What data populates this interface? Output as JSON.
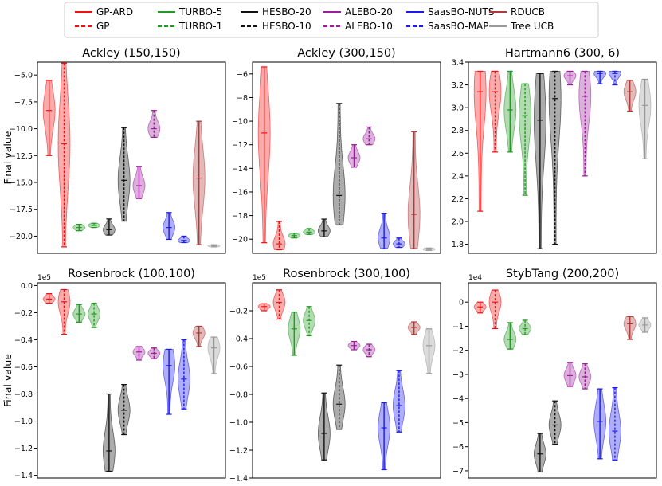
{
  "chart_data": {
    "type": "violin",
    "layout": "2x3 grid",
    "legend": {
      "placement": "top-center",
      "entries": [
        {
          "label": "GP-ARD",
          "color": "#ee1111",
          "dash": "solid"
        },
        {
          "label": "GP",
          "color": "#ee1111",
          "dash": "dashed"
        },
        {
          "label": "TURBO-5",
          "color": "#229922",
          "dash": "solid"
        },
        {
          "label": "TURBO-1",
          "color": "#229922",
          "dash": "dashed"
        },
        {
          "label": "HESBO-20",
          "color": "#111111",
          "dash": "solid"
        },
        {
          "label": "HESBO-10",
          "color": "#111111",
          "dash": "dashed"
        },
        {
          "label": "ALEBO-20",
          "color": "#9b1f9b",
          "dash": "solid"
        },
        {
          "label": "ALEBO-10",
          "color": "#9b1f9b",
          "dash": "dashed"
        },
        {
          "label": "SaasBO-NUTS",
          "color": "#1a1aee",
          "dash": "solid"
        },
        {
          "label": "SaasBO-MAP",
          "color": "#1a1aee",
          "dash": "dashed"
        },
        {
          "label": "RDUCB",
          "color": "#b03a3a",
          "dash": "solid"
        },
        {
          "label": "Tree UCB",
          "color": "#999999",
          "dash": "solid"
        }
      ]
    },
    "colors": {
      "gp": "#ee1111",
      "turbo": "#229922",
      "hesbo": "#111111",
      "alebo": "#9b1f9b",
      "saasbo": "#1a1aee",
      "rducb": "#b03a3a",
      "treeucb": "#999999"
    },
    "ylabel": "Final value",
    "panels": [
      {
        "title": "Ackley (150,150)",
        "ylabel": "Final value",
        "ylim": [
          -21.6,
          -3.8
        ],
        "yticks": [
          -5.0,
          -7.5,
          -10.0,
          -12.5,
          -15.0,
          -17.5,
          -20.0
        ],
        "tick_labels": [
          "−5.0",
          "−7.5",
          "−10.0",
          "−12.5",
          "−15.0",
          "−17.5",
          "−20.0"
        ],
        "exponent": "",
        "violins": [
          {
            "method": "GP-ARD",
            "min": -12.5,
            "max": -5.5,
            "median": -8.3
          },
          {
            "method": "GP",
            "min": -21.0,
            "max": -3.9,
            "median": -11.4
          },
          {
            "method": "TURBO-5",
            "min": -19.5,
            "max": -18.9,
            "median": -19.2
          },
          {
            "method": "TURBO-1",
            "min": -19.2,
            "max": -18.8,
            "median": -19.0
          },
          {
            "method": "HESBO-20",
            "min": -19.9,
            "max": -18.4,
            "median": -19.4
          },
          {
            "method": "HESBO-10",
            "min": -18.6,
            "max": -9.9,
            "median": -14.8
          },
          {
            "method": "ALEBO-20",
            "min": -16.5,
            "max": -13.5,
            "median": -15.3
          },
          {
            "method": "ALEBO-10",
            "min": -10.8,
            "max": -8.3,
            "median": -10.0
          },
          {
            "method": "SaasBO-NUTS",
            "min": -20.3,
            "max": -17.8,
            "median": -19.2
          },
          {
            "method": "SaasBO-MAP",
            "min": -20.6,
            "max": -20.0,
            "median": -20.4
          },
          {
            "method": "RDUCB",
            "min": -20.8,
            "max": -9.3,
            "median": -14.6
          },
          {
            "method": "Tree UCB",
            "min": -21.0,
            "max": -20.8,
            "median": -20.9
          }
        ]
      },
      {
        "title": "Ackley (300,150)",
        "ylabel": "",
        "ylim": [
          -21.2,
          -5.0
        ],
        "yticks": [
          -6,
          -8,
          -10,
          -12,
          -14,
          -16,
          -18,
          -20
        ],
        "tick_labels": [
          "−6",
          "−8",
          "−10",
          "−12",
          "−14",
          "−16",
          "−18",
          "−20"
        ],
        "exponent": "",
        "violins": [
          {
            "method": "GP-ARD",
            "min": -20.3,
            "max": -5.4,
            "median": -11.0
          },
          {
            "method": "GP",
            "min": -20.9,
            "max": -18.5,
            "median": -20.4
          },
          {
            "method": "TURBO-5",
            "min": -19.9,
            "max": -19.5,
            "median": -19.7
          },
          {
            "method": "TURBO-1",
            "min": -19.6,
            "max": -19.1,
            "median": -19.4
          },
          {
            "method": "HESBO-20",
            "min": -19.8,
            "max": -18.3,
            "median": -19.3
          },
          {
            "method": "HESBO-10",
            "min": -18.8,
            "max": -8.5,
            "median": -16.3
          },
          {
            "method": "ALEBO-20",
            "min": -13.9,
            "max": -12.0,
            "median": -13.1
          },
          {
            "method": "ALEBO-10",
            "min": -12.0,
            "max": -10.5,
            "median": -11.5
          },
          {
            "method": "SaasBO-NUTS",
            "min": -20.8,
            "max": -17.8,
            "median": -19.9
          },
          {
            "method": "SaasBO-MAP",
            "min": -20.7,
            "max": -19.9,
            "median": -20.4
          },
          {
            "method": "RDUCB",
            "min": -20.8,
            "max": -10.9,
            "median": -17.9
          },
          {
            "method": "Tree UCB",
            "min": -20.95,
            "max": -20.75,
            "median": -20.85
          }
        ]
      },
      {
        "title": "Hartmann6 (300, 6)",
        "ylabel": "",
        "ylim": [
          1.72,
          3.4
        ],
        "yticks": [
          1.8,
          2.0,
          2.2,
          2.4,
          2.6,
          2.8,
          3.0,
          3.2,
          3.4
        ],
        "tick_labels": [
          "1.8",
          "2.0",
          "2.2",
          "2.4",
          "2.6",
          "2.8",
          "3.0",
          "3.2",
          "3.4"
        ],
        "exponent": "",
        "violins": [
          {
            "method": "GP-ARD",
            "min": 2.09,
            "max": 3.32,
            "median": 3.14
          },
          {
            "method": "GP",
            "min": 2.61,
            "max": 3.32,
            "median": 3.14
          },
          {
            "method": "TURBO-5",
            "min": 2.61,
            "max": 3.32,
            "median": 2.98
          },
          {
            "method": "TURBO-1",
            "min": 2.23,
            "max": 3.21,
            "median": 2.93
          },
          {
            "method": "HESBO-20",
            "min": 1.76,
            "max": 3.3,
            "median": 2.89
          },
          {
            "method": "HESBO-10",
            "min": 1.8,
            "max": 3.32,
            "median": 3.08
          },
          {
            "method": "ALEBO-20",
            "min": 3.2,
            "max": 3.32,
            "median": 3.28
          },
          {
            "method": "ALEBO-10",
            "min": 2.4,
            "max": 3.32,
            "median": 3.1
          },
          {
            "method": "SaasBO-NUTS",
            "min": 3.21,
            "max": 3.32,
            "median": 3.3
          },
          {
            "method": "SaasBO-MAP",
            "min": 3.2,
            "max": 3.32,
            "median": 3.3
          },
          {
            "method": "RDUCB",
            "min": 2.97,
            "max": 3.24,
            "median": 3.14
          },
          {
            "method": "Tree UCB",
            "min": 2.55,
            "max": 3.25,
            "median": 3.02
          }
        ]
      },
      {
        "title": "Rosenbrock (100,100)",
        "ylabel": "Final value",
        "ylim": [
          -1.42,
          0.02
        ],
        "yticks": [
          0.0,
          -0.2,
          -0.4,
          -0.6,
          -0.8,
          -1.0,
          -1.2,
          -1.4
        ],
        "tick_labels": [
          "0.0",
          "−0.2",
          "−0.4",
          "−0.6",
          "−0.8",
          "−1.0",
          "−1.2",
          "−1.4"
        ],
        "exponent": "1e5",
        "violins": [
          {
            "method": "GP-ARD",
            "min": -0.13,
            "max": -0.06,
            "median": -0.1
          },
          {
            "method": "GP",
            "min": -0.36,
            "max": -0.03,
            "median": -0.12
          },
          {
            "method": "TURBO-5",
            "min": -0.27,
            "max": -0.14,
            "median": -0.21
          },
          {
            "method": "TURBO-1",
            "min": -0.31,
            "max": -0.13,
            "median": -0.21
          },
          {
            "method": "HESBO-20",
            "min": -1.37,
            "max": -0.8,
            "median": -1.22
          },
          {
            "method": "HESBO-10",
            "min": -1.1,
            "max": -0.73,
            "median": -0.92
          },
          {
            "method": "ALEBO-20",
            "min": -0.55,
            "max": -0.45,
            "median": -0.49
          },
          {
            "method": "ALEBO-10",
            "min": -0.54,
            "max": -0.46,
            "median": -0.5
          },
          {
            "method": "SaasBO-NUTS",
            "min": -0.95,
            "max": -0.47,
            "median": -0.59
          },
          {
            "method": "SaasBO-MAP",
            "min": -0.91,
            "max": -0.4,
            "median": -0.69
          },
          {
            "method": "RDUCB",
            "min": -0.45,
            "max": -0.3,
            "median": -0.35
          },
          {
            "method": "Tree UCB",
            "min": -0.65,
            "max": -0.38,
            "median": -0.46
          }
        ]
      },
      {
        "title": "Rosenbrock (300,100)",
        "ylabel": "",
        "ylim": [
          -1.4,
          0.0
        ],
        "yticks": [
          -0.2,
          -0.4,
          -0.6,
          -0.8,
          -1.0,
          -1.2,
          -1.4
        ],
        "tick_labels": [
          "−0.2",
          "−0.4",
          "−0.6",
          "−0.8",
          "−1.0",
          "−1.2",
          "−1.4"
        ],
        "exponent": "1e5",
        "violins": [
          {
            "method": "GP-ARD",
            "min": -0.2,
            "max": -0.15,
            "median": -0.17
          },
          {
            "method": "GP",
            "min": -0.26,
            "max": -0.05,
            "median": -0.14
          },
          {
            "method": "TURBO-5",
            "min": -0.52,
            "max": -0.21,
            "median": -0.33
          },
          {
            "method": "TURBO-1",
            "min": -0.38,
            "max": -0.17,
            "median": -0.27
          },
          {
            "method": "HESBO-20",
            "min": -1.27,
            "max": -0.79,
            "median": -1.08
          },
          {
            "method": "HESBO-10",
            "min": -1.05,
            "max": -0.59,
            "median": -0.87
          },
          {
            "method": "ALEBO-20",
            "min": -0.48,
            "max": -0.42,
            "median": -0.45
          },
          {
            "method": "ALEBO-10",
            "min": -0.53,
            "max": -0.44,
            "median": -0.48
          },
          {
            "method": "SaasBO-NUTS",
            "min": -1.34,
            "max": -0.86,
            "median": -1.04
          },
          {
            "method": "SaasBO-MAP",
            "min": -1.07,
            "max": -0.63,
            "median": -0.88
          },
          {
            "method": "RDUCB",
            "min": -0.37,
            "max": -0.28,
            "median": -0.32
          },
          {
            "method": "Tree UCB",
            "min": -0.65,
            "max": -0.33,
            "median": -0.45
          }
        ]
      },
      {
        "title": "StybTang (200,200)",
        "ylabel": "",
        "ylim": [
          -7.3,
          0.8
        ],
        "yticks": [
          0,
          -1,
          -2,
          -3,
          -4,
          -5,
          -6,
          -7
        ],
        "tick_labels": [
          "0",
          "−1",
          "−2",
          "−3",
          "−4",
          "−5",
          "−6",
          "−7"
        ],
        "exponent": "1e4",
        "violins": [
          {
            "method": "GP-ARD",
            "min": -0.45,
            "max": 0.0,
            "median": -0.2
          },
          {
            "method": "GP",
            "min": -1.1,
            "max": 0.5,
            "median": 0.0
          },
          {
            "method": "TURBO-5",
            "min": -1.95,
            "max": -0.85,
            "median": -1.55
          },
          {
            "method": "TURBO-1",
            "min": -1.35,
            "max": -0.75,
            "median": -1.1
          },
          {
            "method": "HESBO-20",
            "min": -7.05,
            "max": -5.45,
            "median": -6.3
          },
          {
            "method": "HESBO-10",
            "min": -5.9,
            "max": -4.1,
            "median": -5.1
          },
          {
            "method": "ALEBO-20",
            "min": -3.5,
            "max": -2.5,
            "median": -3.05
          },
          {
            "method": "ALEBO-10",
            "min": -3.6,
            "max": -2.55,
            "median": -3.1
          },
          {
            "method": "SaasBO-NUTS",
            "min": -6.5,
            "max": -3.6,
            "median": -4.95
          },
          {
            "method": "SaasBO-MAP",
            "min": -6.55,
            "max": -3.55,
            "median": -5.35
          },
          {
            "method": "RDUCB",
            "min": -1.55,
            "max": -0.6,
            "median": -0.9
          },
          {
            "method": "Tree UCB",
            "min": -1.25,
            "max": -0.65,
            "median": -0.95
          }
        ]
      }
    ]
  }
}
